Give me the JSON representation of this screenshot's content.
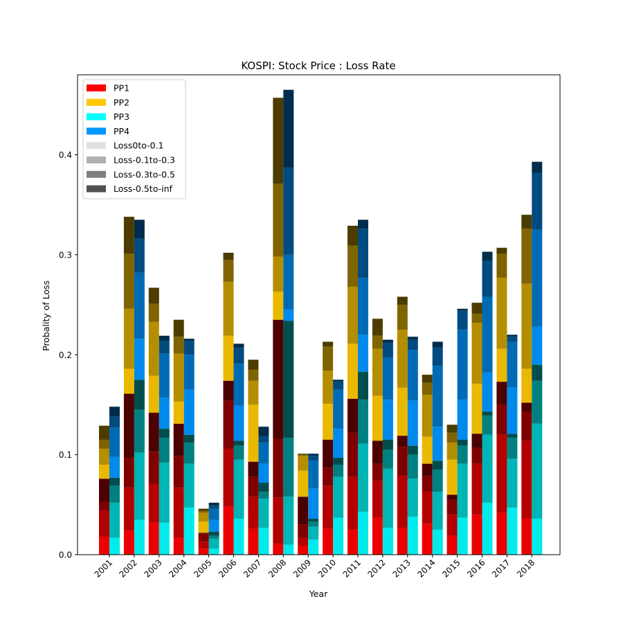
{
  "chart_data": {
    "type": "bar",
    "stacked": true,
    "grouped": true,
    "title": "KOSPI: Stock Price : Loss Rate",
    "xlabel": "Year",
    "ylabel": "Probality of Loss",
    "ylim": [
      0,
      0.48
    ],
    "yticks": [
      "0.0",
      "0.1",
      "0.2",
      "0.3",
      "0.4"
    ],
    "grid": false,
    "legend_position": "top-left",
    "categories": [
      "2001",
      "2002",
      "2003",
      "2004",
      "2005",
      "2006",
      "2007",
      "2008",
      "2009",
      "2010",
      "2011",
      "2012",
      "2013",
      "2014",
      "2015",
      "2016",
      "2017",
      "2018"
    ],
    "legend": [
      {
        "label": "PP1",
        "color": "#ff0000"
      },
      {
        "label": "PP2",
        "color": "#ffc800"
      },
      {
        "label": "PP3",
        "color": "#00ffff"
      },
      {
        "label": "PP4",
        "color": "#0096ff"
      },
      {
        "label": "Loss0to-0.1",
        "color": "#e0e0e0"
      },
      {
        "label": "Loss-0.1to-0.3",
        "color": "#b0b0b0"
      },
      {
        "label": "Loss-0.3to-0.5",
        "color": "#808080"
      },
      {
        "label": "Loss-0.5to-inf",
        "color": "#505050"
      }
    ],
    "segment_shades": [
      0.92,
      0.71,
      0.5,
      0.3
    ],
    "series": [
      {
        "name": "PP1",
        "color": "#ff0000",
        "segments": {
          "Loss0to-0.1": [
            0.018,
            0.024,
            0.032,
            0.017,
            0.006,
            0.048,
            0.026,
            0.011,
            0.009,
            0.026,
            0.025,
            0.037,
            0.027,
            0.031,
            0.019,
            0.04,
            0.042,
            0.036
          ],
          "Loss-0.1to-0.3": [
            0.026,
            0.043,
            0.039,
            0.05,
            0.007,
            0.058,
            0.032,
            0.046,
            0.008,
            0.043,
            0.053,
            0.037,
            0.052,
            0.032,
            0.021,
            0.051,
            0.078,
            0.078
          ],
          "Loss-0.3to-0.5": [
            0.009,
            0.03,
            0.032,
            0.032,
            0.008,
            0.048,
            0.02,
            0.059,
            0.013,
            0.018,
            0.044,
            0.017,
            0.029,
            0.016,
            0.015,
            0.016,
            0.03,
            0.029
          ],
          "Loss-0.5to-inf": [
            0.023,
            0.064,
            0.039,
            0.032,
            0.001,
            0.02,
            0.015,
            0.119,
            0.028,
            0.028,
            0.034,
            0.023,
            0.011,
            0.012,
            0.005,
            0.014,
            0.023,
            0.009
          ]
        }
      },
      {
        "name": "PP2",
        "color": "#ffc800",
        "segments": {
          "Loss0to-0.1": [
            0.014,
            0.025,
            0.037,
            0.022,
            0.011,
            0.045,
            0.057,
            0.028,
            0.026,
            0.036,
            0.055,
            0.045,
            0.048,
            0.027,
            0.035,
            0.05,
            0.033,
            0.034
          ],
          "Loss-0.1to-0.3": [
            0.016,
            0.06,
            0.054,
            0.048,
            0.009,
            0.054,
            0.024,
            0.035,
            0.015,
            0.033,
            0.057,
            0.047,
            0.058,
            0.042,
            0.017,
            0.061,
            0.071,
            0.085
          ],
          "Loss-0.3to-0.5": [
            0.009,
            0.055,
            0.018,
            0.017,
            0.002,
            0.022,
            0.011,
            0.073,
            0.001,
            0.024,
            0.041,
            0.013,
            0.025,
            0.012,
            0.01,
            0.009,
            0.024,
            0.055
          ],
          "Loss-0.5to-inf": [
            0.014,
            0.037,
            0.016,
            0.017,
            0.002,
            0.007,
            0.01,
            0.086,
            0.001,
            0.005,
            0.02,
            0.017,
            0.008,
            0.008,
            0.008,
            0.011,
            0.006,
            0.014
          ]
        }
      },
      {
        "name": "PP3",
        "color": "#00ffff",
        "segments": {
          "Loss0to-0.1": [
            0.017,
            0.035,
            0.032,
            0.047,
            0.006,
            0.036,
            0.027,
            0.01,
            0.015,
            0.037,
            0.043,
            0.027,
            0.038,
            0.025,
            0.037,
            0.052,
            0.047,
            0.036
          ],
          "Loss-0.1to-0.3": [
            0.035,
            0.067,
            0.06,
            0.044,
            0.01,
            0.059,
            0.029,
            0.048,
            0.013,
            0.041,
            0.068,
            0.059,
            0.038,
            0.038,
            0.054,
            0.068,
            0.049,
            0.095
          ],
          "Loss-0.3to-0.5": [
            0.017,
            0.043,
            0.025,
            0.021,
            0.003,
            0.014,
            0.007,
            0.059,
            0.005,
            0.012,
            0.044,
            0.019,
            0.024,
            0.022,
            0.018,
            0.019,
            0.021,
            0.043
          ],
          "Loss-0.5to-inf": [
            0.008,
            0.03,
            0.009,
            0.008,
            0.004,
            0.005,
            0.009,
            0.117,
            0.003,
            0.007,
            0.028,
            0.01,
            0.009,
            0.009,
            0.006,
            0.004,
            0.004,
            0.016
          ]
        }
      },
      {
        "name": "PP4",
        "color": "#0096ff",
        "segments": {
          "Loss0to-0.1": [
            0.021,
            0.041,
            0.031,
            0.045,
            0.012,
            0.035,
            0.019,
            0.011,
            0.03,
            0.029,
            0.037,
            0.04,
            0.045,
            0.034,
            0.04,
            0.039,
            0.046,
            0.038
          ],
          "Loss-0.1to-0.3": [
            0.029,
            0.066,
            0.044,
            0.035,
            0.011,
            0.042,
            0.021,
            0.055,
            0.028,
            0.039,
            0.057,
            0.042,
            0.051,
            0.061,
            0.07,
            0.076,
            0.046,
            0.097
          ],
          "Loss-0.3to-0.5": [
            0.011,
            0.034,
            0.013,
            0.014,
            0.003,
            0.016,
            0.006,
            0.087,
            0.005,
            0.008,
            0.049,
            0.015,
            0.01,
            0.018,
            0.019,
            0.036,
            0.005,
            0.057
          ],
          "Loss-0.5to-inf": [
            0.01,
            0.019,
            0.005,
            0.002,
            0.003,
            0.004,
            0.01,
            0.078,
            0.002,
            0.002,
            0.009,
            0.003,
            0.003,
            0.006,
            0.002,
            0.009,
            0.002,
            0.011
          ]
        }
      }
    ]
  }
}
